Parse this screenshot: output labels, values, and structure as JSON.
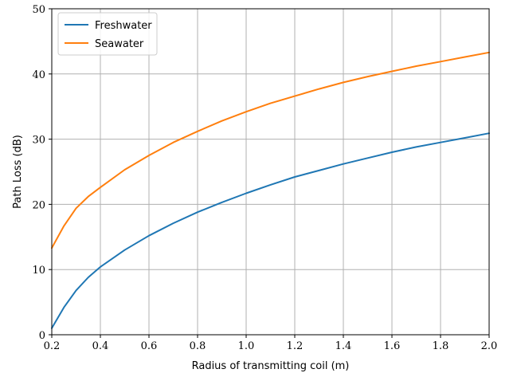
{
  "chart_data": {
    "type": "line",
    "xlabel": "Radius of transmitting coil (m)",
    "ylabel": "Path Loss (dB)",
    "xlim": [
      0.2,
      2.0
    ],
    "ylim": [
      0,
      50
    ],
    "xticks": [
      0.2,
      0.4,
      0.6,
      0.8,
      1.0,
      1.2,
      1.4,
      1.6,
      1.8,
      2.0
    ],
    "xtick_labels": [
      "0.2",
      "0.4",
      "0.6",
      "0.8",
      "1.0",
      "1.2",
      "1.4",
      "1.6",
      "1.8",
      "2.0"
    ],
    "yticks": [
      0,
      10,
      20,
      30,
      40,
      50
    ],
    "ytick_labels": [
      "0",
      "10",
      "20",
      "30",
      "40",
      "50"
    ],
    "grid": true,
    "legend_position": "top-left",
    "series": [
      {
        "name": "Freshwater",
        "color": "#1f77b4",
        "x": [
          0.2,
          0.25,
          0.3,
          0.35,
          0.4,
          0.5,
          0.6,
          0.7,
          0.8,
          0.9,
          1.0,
          1.1,
          1.2,
          1.3,
          1.4,
          1.5,
          1.6,
          1.7,
          1.8,
          1.9,
          2.0
        ],
        "y": [
          1.0,
          4.2,
          6.8,
          8.8,
          10.4,
          13.0,
          15.2,
          17.1,
          18.8,
          20.3,
          21.7,
          23.0,
          24.2,
          25.2,
          26.2,
          27.1,
          28.0,
          28.8,
          29.5,
          30.2,
          30.9
        ]
      },
      {
        "name": "Seawater",
        "color": "#ff7f0e",
        "x": [
          0.2,
          0.25,
          0.3,
          0.35,
          0.4,
          0.5,
          0.6,
          0.7,
          0.8,
          0.9,
          1.0,
          1.1,
          1.2,
          1.3,
          1.4,
          1.5,
          1.6,
          1.7,
          1.8,
          1.9,
          2.0
        ],
        "y": [
          13.3,
          16.7,
          19.4,
          21.2,
          22.6,
          25.3,
          27.5,
          29.5,
          31.2,
          32.8,
          34.2,
          35.5,
          36.6,
          37.7,
          38.7,
          39.6,
          40.4,
          41.2,
          41.9,
          42.6,
          43.3
        ]
      }
    ]
  }
}
